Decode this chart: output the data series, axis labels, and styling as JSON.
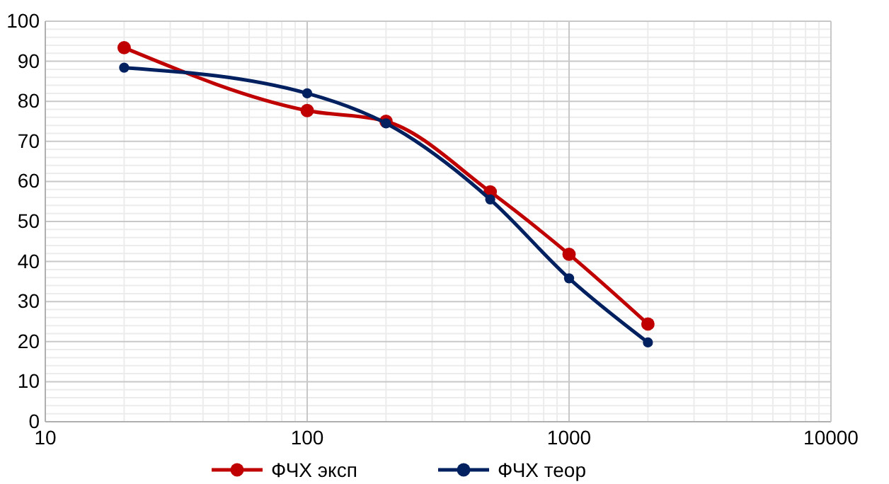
{
  "chart_data": {
    "type": "line",
    "log": "x",
    "xlim": [
      10,
      10000
    ],
    "xticks": [
      10,
      100,
      1000,
      10000
    ],
    "ylim": [
      0,
      100
    ],
    "yticks": [
      0,
      10,
      20,
      30,
      40,
      50,
      60,
      70,
      80,
      90,
      100
    ],
    "grid": true,
    "legend": "bottom",
    "marker": "circle",
    "line_style": "solid",
    "x": [
      20,
      100,
      200,
      500,
      1000,
      2000
    ],
    "series": [
      {
        "name": "ФЧХ эксп",
        "color": "#c00000",
        "values": [
          93.4,
          77.7,
          75,
          57.4,
          41.8,
          24.4
        ]
      },
      {
        "name": "ФЧХ теор",
        "color": "#002060",
        "values": [
          88.4,
          82,
          74.5,
          55.5,
          35.8,
          19.8
        ]
      }
    ]
  }
}
